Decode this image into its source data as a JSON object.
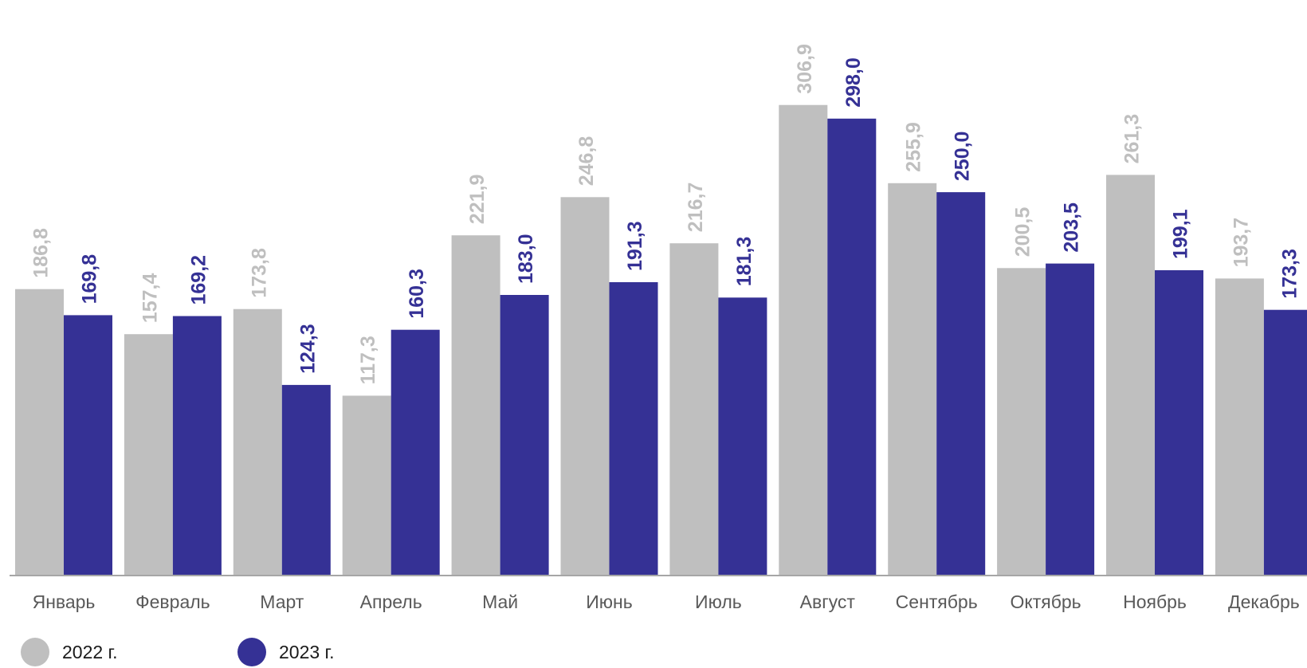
{
  "chart_data": {
    "type": "bar",
    "title": "",
    "xlabel": "",
    "ylabel": "",
    "ylim": [
      0,
      310
    ],
    "grid": false,
    "legend_position": "bottom-left",
    "categories": [
      "Январь",
      "Февраль",
      "Март",
      "Апрель",
      "Май",
      "Июнь",
      "Июль",
      "Август",
      "Сентябрь",
      "Октябрь",
      "Ноябрь",
      "Декабрь"
    ],
    "series": [
      {
        "name": "2022 г.",
        "color": "#bfbfbf",
        "values": [
          186.8,
          157.4,
          173.8,
          117.3,
          221.9,
          246.8,
          216.7,
          306.9,
          255.9,
          200.5,
          261.3,
          193.7
        ],
        "labels": [
          "186,8",
          "157,4",
          "173,8",
          "117,3",
          "221,9",
          "246,8",
          "216,7",
          "306,9",
          "255,9",
          "200,5",
          "261,3",
          "193,7"
        ]
      },
      {
        "name": "2023 г.",
        "color": "#353195",
        "values": [
          169.8,
          169.2,
          124.3,
          160.3,
          183.0,
          191.3,
          181.3,
          298.0,
          250.0,
          203.5,
          199.1,
          173.3
        ],
        "labels": [
          "169,8",
          "169,2",
          "124,3",
          "160,3",
          "183,0",
          "191,3",
          "181,3",
          "298,0",
          "250,0",
          "203,5",
          "199,1",
          "173,3"
        ]
      }
    ]
  }
}
